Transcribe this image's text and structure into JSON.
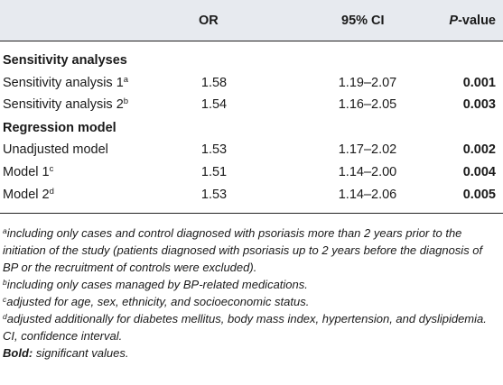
{
  "header": {
    "col_or": "OR",
    "col_ci": "95% CI",
    "col_p_italic": "P",
    "col_p_suffix": "-value"
  },
  "sections": [
    {
      "title": "Sensitivity analyses",
      "rows": [
        {
          "label": "Sensitivity analysis 1",
          "sup": "a",
          "or": "1.58",
          "ci": "1.19–2.07",
          "p": "0.001"
        },
        {
          "label": "Sensitivity analysis 2",
          "sup": "b",
          "or": "1.54",
          "ci": "1.16–2.05",
          "p": "0.003"
        }
      ]
    },
    {
      "title": "Regression model",
      "rows": [
        {
          "label": "Unadjusted model",
          "sup": "",
          "or": "1.53",
          "ci": "1.17–2.02",
          "p": "0.002"
        },
        {
          "label": "Model 1",
          "sup": "c",
          "or": "1.51",
          "ci": "1.14–2.00",
          "p": "0.004"
        },
        {
          "label": "Model 2",
          "sup": "d",
          "or": "1.53",
          "ci": "1.14–2.06",
          "p": "0.005"
        }
      ]
    }
  ],
  "footnotes": {
    "a_mark": "a",
    "a_text": "including only cases and control diagnosed with psoriasis more than 2 years prior to the initiation of the study (patients diagnosed with psoriasis up to 2 years before the diagnosis of BP or the recruitment of controls were excluded).",
    "b_mark": "b",
    "b_text": "including only cases managed by BP-related medications.",
    "c_mark": "c",
    "c_text": "adjusted for age, sex, ethnicity, and socioeconomic status.",
    "d_mark": "d",
    "d_text": "adjusted additionally for diabetes mellitus, body mass index, hypertension, and dyslipidemia.",
    "ci_text": "CI, confidence interval.",
    "bold_label": "Bold:",
    "bold_text": " significant values."
  }
}
